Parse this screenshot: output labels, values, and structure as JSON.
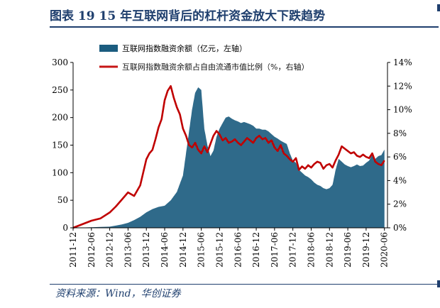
{
  "figure": {
    "title": "图表 19   15 年互联网背后的杠杆资金放大下跌趋势",
    "source": "资料来源：Wind，华创证券"
  },
  "chart_data": {
    "type": "area+line",
    "legend_placement": "top",
    "colors": {
      "bar_series": "#1b5c7f",
      "line_series": "#c00000"
    },
    "series": [
      {
        "name": "互联网指数融资余额（亿元，左轴）",
        "kind": "area",
        "axis": "left",
        "points": [
          [
            "2011-12",
            0
          ],
          [
            "2012-03",
            0.5
          ],
          [
            "2012-06",
            1
          ],
          [
            "2012-09",
            1.5
          ],
          [
            "2012-12",
            2
          ],
          [
            "2013-02",
            4
          ],
          [
            "2013-04",
            6
          ],
          [
            "2013-06",
            9
          ],
          [
            "2013-08",
            14
          ],
          [
            "2013-10",
            20
          ],
          [
            "2013-12",
            28
          ],
          [
            "2014-02",
            34
          ],
          [
            "2014-04",
            38
          ],
          [
            "2014-06",
            40
          ],
          [
            "2014-08",
            50
          ],
          [
            "2014-10",
            65
          ],
          [
            "2014-12",
            95
          ],
          [
            "2015-01",
            135
          ],
          [
            "2015-02",
            175
          ],
          [
            "2015-03",
            215
          ],
          [
            "2015-04",
            245
          ],
          [
            "2015-05",
            255
          ],
          [
            "2015-06",
            250
          ],
          [
            "2015-07",
            180
          ],
          [
            "2015-08",
            150
          ],
          [
            "2015-09",
            130
          ],
          [
            "2015-10",
            140
          ],
          [
            "2015-11",
            165
          ],
          [
            "2015-12",
            180
          ],
          [
            "2016-01",
            190
          ],
          [
            "2016-02",
            200
          ],
          [
            "2016-03",
            202
          ],
          [
            "2016-04",
            198
          ],
          [
            "2016-05",
            195
          ],
          [
            "2016-06",
            193
          ],
          [
            "2016-07",
            190
          ],
          [
            "2016-08",
            192
          ],
          [
            "2016-09",
            190
          ],
          [
            "2016-10",
            188
          ],
          [
            "2016-11",
            185
          ],
          [
            "2016-12",
            180
          ],
          [
            "2017-01",
            180
          ],
          [
            "2017-02",
            178
          ],
          [
            "2017-03",
            178
          ],
          [
            "2017-04",
            175
          ],
          [
            "2017-05",
            170
          ],
          [
            "2017-06",
            165
          ],
          [
            "2017-07",
            162
          ],
          [
            "2017-08",
            158
          ],
          [
            "2017-09",
            155
          ],
          [
            "2017-10",
            152
          ],
          [
            "2017-11",
            135
          ],
          [
            "2017-12",
            122
          ],
          [
            "2018-01",
            118
          ],
          [
            "2018-02",
            105
          ],
          [
            "2018-03",
            100
          ],
          [
            "2018-04",
            95
          ],
          [
            "2018-05",
            92
          ],
          [
            "2018-06",
            88
          ],
          [
            "2018-07",
            82
          ],
          [
            "2018-08",
            78
          ],
          [
            "2018-09",
            76
          ],
          [
            "2018-10",
            72
          ],
          [
            "2018-11",
            70
          ],
          [
            "2018-12",
            72
          ],
          [
            "2019-01",
            78
          ],
          [
            "2019-02",
            105
          ],
          [
            "2019-03",
            125
          ],
          [
            "2019-04",
            120
          ],
          [
            "2019-05",
            115
          ],
          [
            "2019-06",
            112
          ],
          [
            "2019-07",
            110
          ],
          [
            "2019-08",
            112
          ],
          [
            "2019-09",
            115
          ],
          [
            "2019-10",
            112
          ],
          [
            "2019-11",
            113
          ],
          [
            "2019-12",
            118
          ],
          [
            "2020-01",
            122
          ],
          [
            "2020-02",
            133
          ],
          [
            "2020-03",
            125
          ],
          [
            "2020-04",
            130
          ],
          [
            "2020-05",
            132
          ],
          [
            "2020-06",
            142
          ]
        ]
      },
      {
        "name": "互联网指数融资余额占自由流通市值比例（%，右轴）",
        "kind": "line",
        "axis": "right",
        "points": [
          [
            "2011-12",
            0
          ],
          [
            "2012-03",
            0.3
          ],
          [
            "2012-06",
            0.6
          ],
          [
            "2012-09",
            0.8
          ],
          [
            "2012-12",
            1.3
          ],
          [
            "2013-02",
            1.8
          ],
          [
            "2013-04",
            2.4
          ],
          [
            "2013-06",
            3.0
          ],
          [
            "2013-08",
            2.7
          ],
          [
            "2013-10",
            3.6
          ],
          [
            "2013-12",
            5.8
          ],
          [
            "2014-01",
            6.3
          ],
          [
            "2014-02",
            6.6
          ],
          [
            "2014-03",
            7.5
          ],
          [
            "2014-04",
            8.5
          ],
          [
            "2014-05",
            9.2
          ],
          [
            "2014-06",
            10.8
          ],
          [
            "2014-07",
            11.6
          ],
          [
            "2014-08",
            12.0
          ],
          [
            "2014-09",
            11.0
          ],
          [
            "2014-10",
            10.2
          ],
          [
            "2014-11",
            9.6
          ],
          [
            "2014-12",
            8.4
          ],
          [
            "2015-01",
            7.8
          ],
          [
            "2015-02",
            7.0
          ],
          [
            "2015-03",
            6.8
          ],
          [
            "2015-04",
            7.2
          ],
          [
            "2015-05",
            6.6
          ],
          [
            "2015-06",
            6.3
          ],
          [
            "2015-07",
            6.9
          ],
          [
            "2015-08",
            6.4
          ],
          [
            "2015-09",
            7.1
          ],
          [
            "2015-10",
            7.8
          ],
          [
            "2015-11",
            8.2
          ],
          [
            "2015-12",
            7.9
          ],
          [
            "2016-01",
            7.4
          ],
          [
            "2016-02",
            7.6
          ],
          [
            "2016-03",
            7.2
          ],
          [
            "2016-04",
            7.3
          ],
          [
            "2016-05",
            7.5
          ],
          [
            "2016-06",
            7.2
          ],
          [
            "2016-07",
            7.0
          ],
          [
            "2016-08",
            7.3
          ],
          [
            "2016-09",
            7.6
          ],
          [
            "2016-10",
            7.4
          ],
          [
            "2016-11",
            7.2
          ],
          [
            "2016-12",
            7.6
          ],
          [
            "2017-01",
            7.8
          ],
          [
            "2017-02",
            7.5
          ],
          [
            "2017-03",
            7.6
          ],
          [
            "2017-04",
            7.2
          ],
          [
            "2017-05",
            7.4
          ],
          [
            "2017-06",
            6.8
          ],
          [
            "2017-07",
            6.5
          ],
          [
            "2017-08",
            7.0
          ],
          [
            "2017-09",
            6.3
          ],
          [
            "2017-10",
            6.1
          ],
          [
            "2017-11",
            5.8
          ],
          [
            "2017-12",
            5.6
          ],
          [
            "2018-01",
            5.9
          ],
          [
            "2018-02",
            4.9
          ],
          [
            "2018-03",
            5.2
          ],
          [
            "2018-04",
            5.0
          ],
          [
            "2018-05",
            5.3
          ],
          [
            "2018-06",
            5.1
          ],
          [
            "2018-07",
            5.4
          ],
          [
            "2018-08",
            5.6
          ],
          [
            "2018-09",
            5.5
          ],
          [
            "2018-10",
            5.0
          ],
          [
            "2018-11",
            5.3
          ],
          [
            "2018-12",
            5.4
          ],
          [
            "2019-01",
            5.1
          ],
          [
            "2019-02",
            5.7
          ],
          [
            "2019-03",
            6.2
          ],
          [
            "2019-04",
            6.9
          ],
          [
            "2019-05",
            6.7
          ],
          [
            "2019-06",
            6.5
          ],
          [
            "2019-07",
            6.3
          ],
          [
            "2019-08",
            6.4
          ],
          [
            "2019-09",
            6.1
          ],
          [
            "2019-10",
            6.0
          ],
          [
            "2019-11",
            6.2
          ],
          [
            "2019-12",
            6.0
          ],
          [
            "2020-01",
            5.9
          ],
          [
            "2020-02",
            6.3
          ],
          [
            "2020-03",
            5.6
          ],
          [
            "2020-04",
            5.4
          ],
          [
            "2020-05",
            5.3
          ],
          [
            "2020-06",
            5.7
          ]
        ]
      }
    ],
    "left_axis": {
      "min": 0,
      "max": 300,
      "ticks": [
        "0",
        "50",
        "100",
        "150",
        "200",
        "250",
        "300"
      ]
    },
    "right_axis": {
      "min": 0,
      "max": 14,
      "ticks": [
        "0%",
        "2%",
        "4%",
        "6%",
        "8%",
        "10%",
        "12%",
        "14%"
      ]
    },
    "x_axis": {
      "range": [
        "2011-12",
        "2020-07"
      ],
      "ticks": [
        "2011-12",
        "2012-06",
        "2012-12",
        "2013-06",
        "2013-12",
        "2014-06",
        "2014-12",
        "2015-06",
        "2015-12",
        "2016-06",
        "2016-12",
        "2017-06",
        "2017-12",
        "2018-06",
        "2018-12",
        "2019-06",
        "2019-12",
        "2020-06"
      ]
    }
  }
}
